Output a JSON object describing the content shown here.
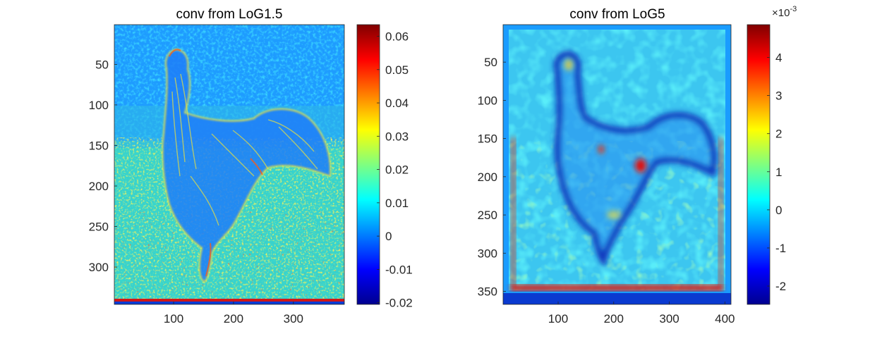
{
  "chart_data": [
    {
      "type": "heatmap",
      "title": "conv from LoG1.5",
      "description_colormap": "jet",
      "x_ticks": [
        100,
        200,
        300
      ],
      "y_ticks": [
        50,
        100,
        150,
        200,
        250,
        300
      ],
      "xlim": [
        1,
        385
      ],
      "ylim": [
        1,
        346
      ],
      "y_reversed": true,
      "colorbar": {
        "ticks": [
          -0.02,
          -0.01,
          0,
          0.01,
          0.02,
          0.03,
          0.04,
          0.05,
          0.06
        ],
        "tick_labels": [
          "-0.02",
          "-0.01",
          "0",
          "0.01",
          "0.02",
          "0.03",
          "0.04",
          "0.05",
          "0.06"
        ],
        "range": [
          -0.0205,
          0.0635
        ],
        "exponent_label": ""
      }
    },
    {
      "type": "heatmap",
      "title": "conv from LoG5",
      "description_colormap": "jet",
      "x_ticks": [
        100,
        200,
        300,
        400
      ],
      "y_ticks": [
        50,
        100,
        150,
        200,
        250,
        300,
        350
      ],
      "xlim": [
        1,
        411
      ],
      "ylim": [
        1,
        367
      ],
      "y_reversed": true,
      "colorbar": {
        "ticks": [
          -2,
          -1,
          0,
          1,
          2,
          3,
          4
        ],
        "tick_labels": [
          "-2",
          "-1",
          "0",
          "1",
          "2",
          "3",
          "4"
        ],
        "range": [
          -2.48,
          4.86
        ],
        "exponent_label": "×10^-3"
      }
    }
  ],
  "colors": {
    "background_cold": "#0a4cff",
    "mid_cyan": "#18c8ff",
    "warm_yellow": "#f0f020",
    "hot_red": "#d01010"
  }
}
